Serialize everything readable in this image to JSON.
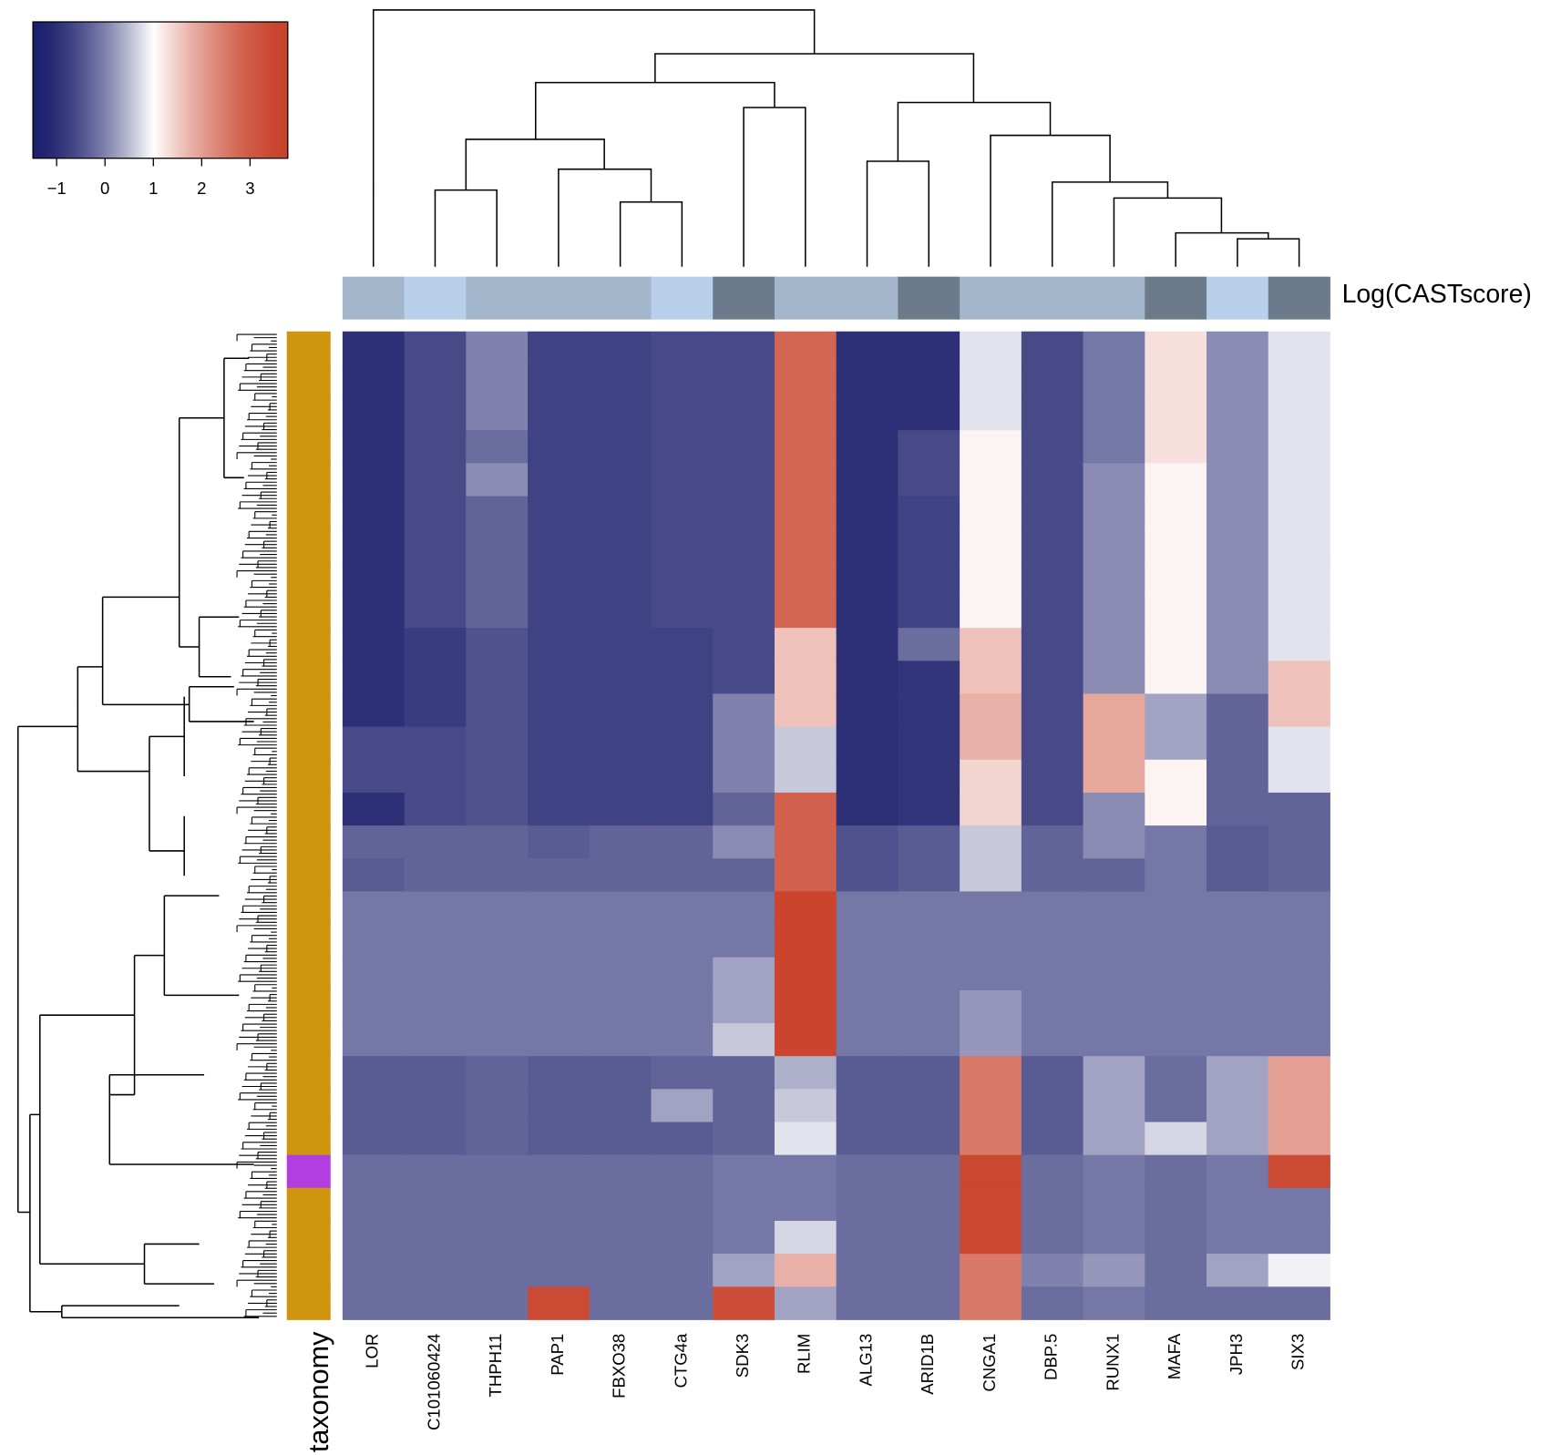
{
  "chart_data": {
    "type": "heatmap",
    "series": [
      {
        "name": "LOR",
        "values": [
          -1,
          -1,
          -1,
          -1,
          -1,
          -1,
          -1,
          -1,
          -1,
          -1,
          -1,
          -1,
          -0.6,
          -0.6,
          -1,
          -0.3,
          -0.4,
          -0.1,
          -0.1,
          -0.1,
          -0.1,
          -0.1,
          -0.4,
          -0.4,
          -0.4,
          -0.2,
          -0.2,
          -0.2,
          -0.2,
          -0.2
        ]
      },
      {
        "name": "C101060424",
        "values": [
          -0.6,
          -0.6,
          -0.6,
          -0.6,
          -0.6,
          -0.6,
          -0.6,
          -0.6,
          -0.6,
          -0.8,
          -0.8,
          -0.8,
          -0.6,
          -0.6,
          -0.6,
          -0.3,
          -0.3,
          -0.1,
          -0.1,
          -0.1,
          -0.1,
          -0.1,
          -0.4,
          -0.4,
          -0.4,
          -0.2,
          -0.2,
          -0.2,
          -0.2,
          -0.2
        ]
      },
      {
        "name": "THPH11",
        "values": [
          0,
          0,
          0,
          -0.2,
          0.1,
          -0.3,
          -0.3,
          -0.3,
          -0.3,
          -0.5,
          -0.5,
          -0.5,
          -0.5,
          -0.5,
          -0.5,
          -0.3,
          -0.3,
          -0.1,
          -0.1,
          -0.1,
          -0.1,
          -0.1,
          -0.3,
          -0.3,
          -0.3,
          -0.2,
          -0.2,
          -0.2,
          -0.2,
          -0.2
        ]
      },
      {
        "name": "PAP1",
        "values": [
          -0.7,
          -0.7,
          -0.7,
          -0.7,
          -0.7,
          -0.7,
          -0.7,
          -0.7,
          -0.7,
          -0.7,
          -0.7,
          -0.7,
          -0.7,
          -0.7,
          -0.7,
          -0.4,
          -0.3,
          -0.1,
          -0.1,
          -0.1,
          -0.1,
          -0.1,
          -0.4,
          -0.4,
          -0.4,
          -0.2,
          -0.2,
          -0.2,
          -0.2,
          3.4
        ]
      },
      {
        "name": "FBXO38",
        "values": [
          -0.7,
          -0.7,
          -0.7,
          -0.7,
          -0.7,
          -0.7,
          -0.7,
          -0.7,
          -0.7,
          -0.7,
          -0.7,
          -0.7,
          -0.7,
          -0.7,
          -0.7,
          -0.3,
          -0.3,
          -0.1,
          -0.1,
          -0.1,
          -0.1,
          -0.1,
          -0.4,
          -0.4,
          -0.4,
          -0.2,
          -0.2,
          -0.2,
          -0.2,
          -0.2
        ]
      },
      {
        "name": "CTG4a",
        "values": [
          -0.6,
          -0.6,
          -0.6,
          -0.6,
          -0.6,
          -0.6,
          -0.6,
          -0.6,
          -0.6,
          -0.7,
          -0.7,
          -0.7,
          -0.7,
          -0.7,
          -0.7,
          -0.3,
          -0.3,
          -0.1,
          -0.1,
          -0.1,
          -0.1,
          -0.1,
          -0.3,
          0.3,
          -0.4,
          -0.2,
          -0.2,
          -0.2,
          -0.2,
          -0.2
        ]
      },
      {
        "name": "SDK3",
        "values": [
          -0.6,
          -0.6,
          -0.6,
          -0.6,
          -0.6,
          -0.6,
          -0.6,
          -0.6,
          -0.6,
          -0.6,
          -0.6,
          0,
          0,
          0,
          -0.3,
          0.1,
          -0.3,
          -0.1,
          -0.1,
          0.3,
          0.3,
          0.6,
          -0.3,
          -0.3,
          -0.3,
          -0.1,
          -0.1,
          -0.1,
          0.3,
          3.3
        ]
      },
      {
        "name": "RLIM",
        "values": [
          2.8,
          2.8,
          2.8,
          2.8,
          2.8,
          2.8,
          2.8,
          2.8,
          2.8,
          1.6,
          1.6,
          1.6,
          0.6,
          0.6,
          2.9,
          2.9,
          2.9,
          3.6,
          3.6,
          3.6,
          3.6,
          3.6,
          0.4,
          0.6,
          0.8,
          -0.1,
          -0.1,
          0.7,
          1.8,
          0.3
        ]
      },
      {
        "name": "ALG13",
        "values": [
          -1,
          -1,
          -1,
          -1,
          -1,
          -1,
          -1,
          -1,
          -1,
          -1,
          -1,
          -1,
          -1,
          -1,
          -1,
          -0.5,
          -0.5,
          -0.1,
          -0.1,
          -0.1,
          -0.1,
          -0.1,
          -0.4,
          -0.4,
          -0.4,
          -0.2,
          -0.2,
          -0.2,
          -0.2,
          -0.2
        ]
      },
      {
        "name": "ARID1B",
        "values": [
          -1,
          -1,
          -1,
          -0.6,
          -0.6,
          -0.7,
          -0.7,
          -0.7,
          -0.7,
          -0.2,
          -0.9,
          -0.9,
          -0.9,
          -0.9,
          -0.9,
          -0.4,
          -0.4,
          -0.1,
          -0.1,
          -0.1,
          -0.1,
          -0.1,
          -0.4,
          -0.4,
          -0.4,
          -0.2,
          -0.2,
          -0.2,
          -0.2,
          -0.2
        ]
      },
      {
        "name": "CNGA1",
        "values": [
          0.8,
          0.8,
          0.8,
          1.1,
          1.1,
          1.1,
          1.1,
          1.1,
          1.1,
          1.6,
          1.6,
          1.8,
          1.8,
          1.4,
          1.4,
          0.6,
          0.6,
          -0.1,
          -0.1,
          -0.1,
          0.2,
          0.2,
          2.5,
          2.5,
          2.5,
          3.5,
          3.5,
          3.5,
          2.5,
          2.5
        ]
      },
      {
        "name": "DBP.5",
        "values": [
          -0.6,
          -0.6,
          -0.6,
          -0.6,
          -0.6,
          -0.6,
          -0.6,
          -0.6,
          -0.6,
          -0.6,
          -0.6,
          -0.6,
          -0.6,
          -0.6,
          -0.6,
          -0.3,
          -0.3,
          -0.1,
          -0.1,
          -0.1,
          -0.1,
          -0.1,
          -0.4,
          -0.4,
          -0.4,
          -0.2,
          -0.2,
          -0.2,
          0,
          -0.2
        ]
      },
      {
        "name": "RUNX1",
        "values": [
          -0.1,
          -0.1,
          -0.1,
          -0.1,
          0.1,
          0.1,
          0.1,
          0.1,
          0.1,
          0.1,
          0.1,
          1.9,
          1.9,
          1.9,
          0.1,
          0.1,
          -0.3,
          -0.1,
          -0.1,
          -0.1,
          -0.1,
          -0.1,
          0.3,
          0.3,
          0.3,
          -0.1,
          -0.1,
          -0.1,
          0.2,
          -0.1
        ]
      },
      {
        "name": "MAFA",
        "values": [
          1.3,
          1.3,
          1.3,
          1.3,
          1.1,
          1.1,
          1.1,
          1.1,
          1.1,
          1.1,
          1.1,
          0.3,
          0.3,
          1.1,
          1.1,
          -0.1,
          -0.1,
          -0.1,
          -0.1,
          -0.1,
          -0.1,
          -0.1,
          -0.2,
          -0.2,
          0.7,
          -0.2,
          -0.2,
          -0.2,
          -0.2,
          -0.2
        ]
      },
      {
        "name": "JPH3",
        "values": [
          0.1,
          0.1,
          0.1,
          0.1,
          0.1,
          0.1,
          0.1,
          0.1,
          0.1,
          0.1,
          0.1,
          -0.3,
          -0.3,
          -0.3,
          -0.3,
          -0.4,
          -0.4,
          -0.1,
          -0.1,
          -0.1,
          -0.1,
          -0.1,
          0.3,
          0.3,
          0.3,
          -0.1,
          -0.1,
          -0.1,
          0.3,
          -0.2
        ]
      },
      {
        "name": "SIX3",
        "values": [
          0.8,
          0.8,
          0.8,
          0.8,
          0.8,
          0.8,
          0.8,
          0.8,
          0.8,
          0.8,
          1.6,
          1.6,
          0.8,
          0.8,
          -0.3,
          -0.3,
          -0.3,
          -0.1,
          -0.1,
          -0.1,
          -0.1,
          -0.1,
          2,
          2,
          2,
          3.4,
          -0.1,
          -0.1,
          0.9,
          -0.2
        ]
      }
    ],
    "colorbar": {
      "xlim": [
        -1.49,
        3.78
      ],
      "xticks": [
        {
          "value": -1,
          "label": "−1"
        },
        0,
        1,
        2,
        3
      ],
      "colors": [
        "#1c1f6c",
        "#ffffff",
        "#c9422b"
      ],
      "center": 1
    },
    "column_annotation": {
      "label": "Log(CASTscore)",
      "colors": [
        "#a3b6cc",
        "#b8d0ea",
        "#a3b6cc",
        "#a3b6cc",
        "#a3b6cc",
        "#b8d0ea",
        "#6b7b8b",
        "#a3b6cc",
        "#a3b6cc",
        "#6b7b8b",
        "#a3b6cc",
        "#a3b6cc",
        "#a3b6cc",
        "#6b7b8b",
        "#b8d0ea",
        "#6b7b8b"
      ]
    },
    "row_annotation": {
      "label": "taxonomy",
      "colors": [
        "#cf950e",
        "#cf950e",
        "#cf950e",
        "#cf950e",
        "#cf950e",
        "#cf950e",
        "#cf950e",
        "#cf950e",
        "#cf950e",
        "#cf950e",
        "#cf950e",
        "#cf950e",
        "#cf950e",
        "#cf950e",
        "#cf950e",
        "#cf950e",
        "#cf950e",
        "#cf950e",
        "#cf950e",
        "#cf950e",
        "#cf950e",
        "#cf950e",
        "#cf950e",
        "#cf950e",
        "#cf950e",
        "#b23ee0",
        "#cf950e",
        "#cf950e",
        "#cf950e",
        "#cf950e"
      ]
    }
  }
}
